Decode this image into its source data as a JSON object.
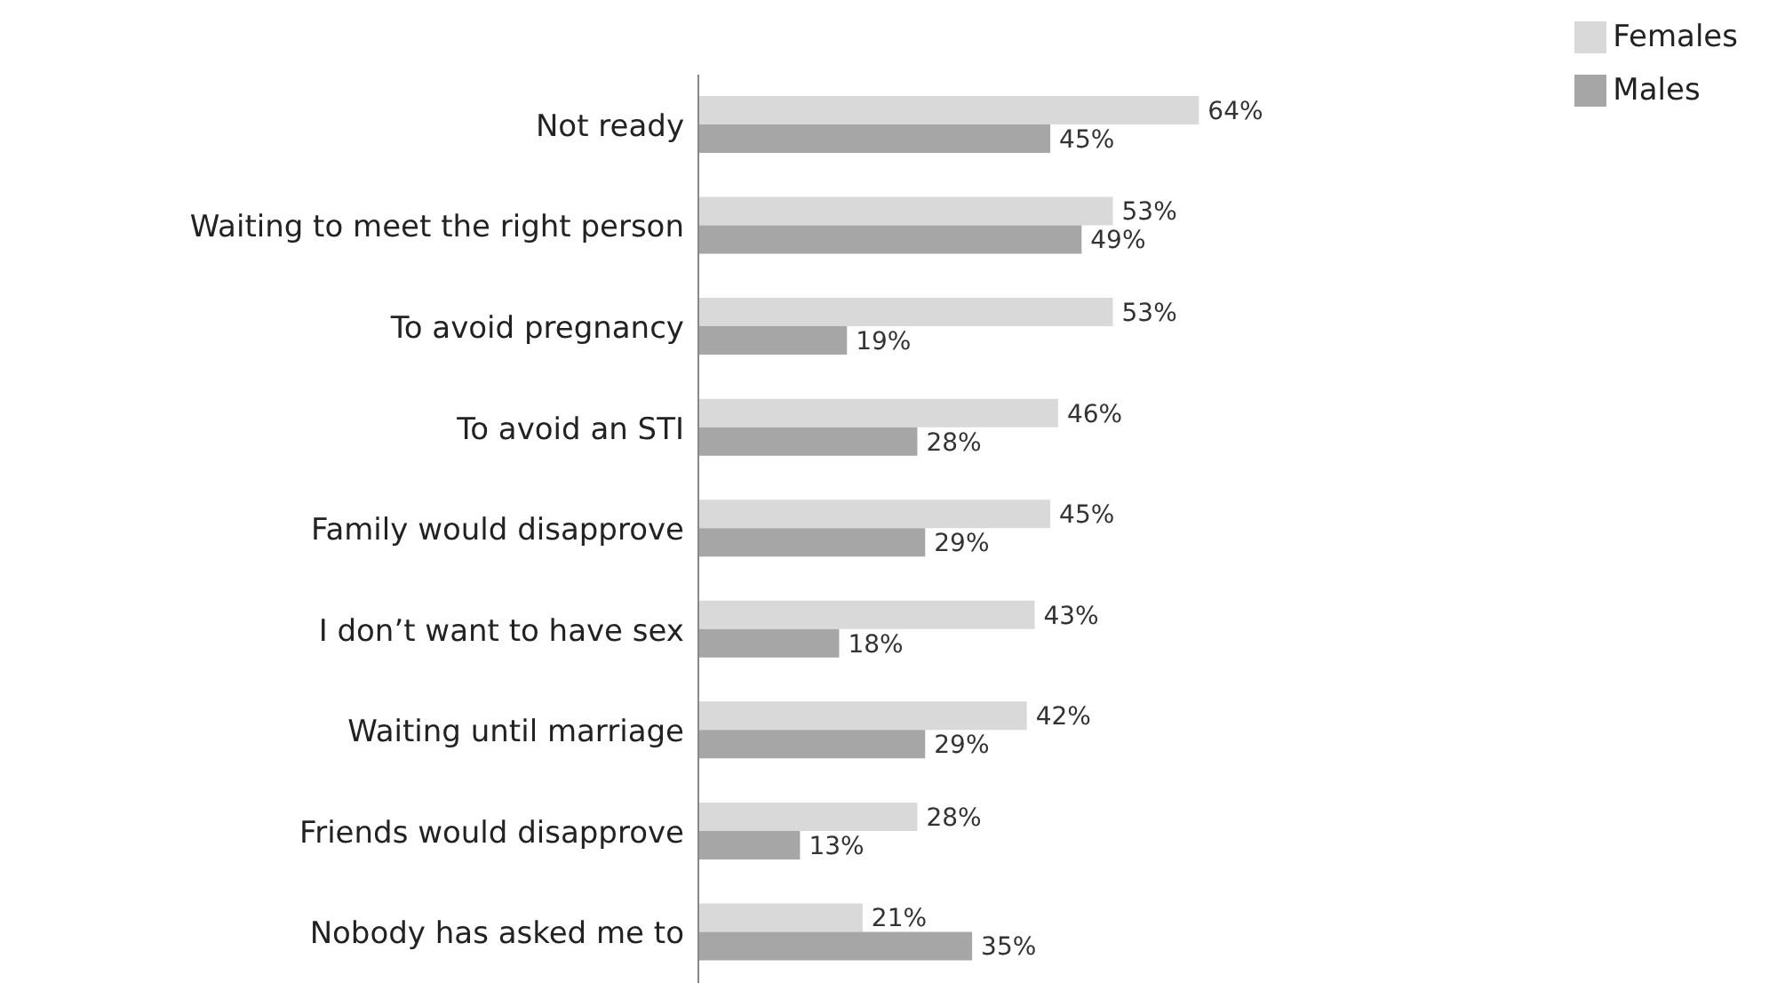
{
  "chart_data": {
    "type": "bar",
    "orientation": "horizontal",
    "categories": [
      "Not ready",
      "Waiting to meet the right person",
      "To avoid pregnancy",
      "To avoid an STI",
      "Family would disapprove",
      "I don’t want to have sex",
      "Waiting until marriage",
      "Friends would disapprove",
      "Nobody has asked me to"
    ],
    "series": [
      {
        "name": "Females",
        "color": "#d9d9d9",
        "values": [
          64,
          53,
          53,
          46,
          45,
          43,
          42,
          28,
          21
        ],
        "value_labels": [
          "64%",
          "53%",
          "53%",
          "46%",
          "45%",
          "43%",
          "42%",
          "28%",
          "21%"
        ]
      },
      {
        "name": "Males",
        "color": "#a6a6a6",
        "values": [
          45,
          49,
          19,
          28,
          29,
          18,
          29,
          13,
          35
        ],
        "value_labels": [
          "45%",
          "49%",
          "19%",
          "28%",
          "29%",
          "18%",
          "29%",
          "13%",
          "35%"
        ]
      }
    ],
    "legend": "top right",
    "grid": false
  }
}
